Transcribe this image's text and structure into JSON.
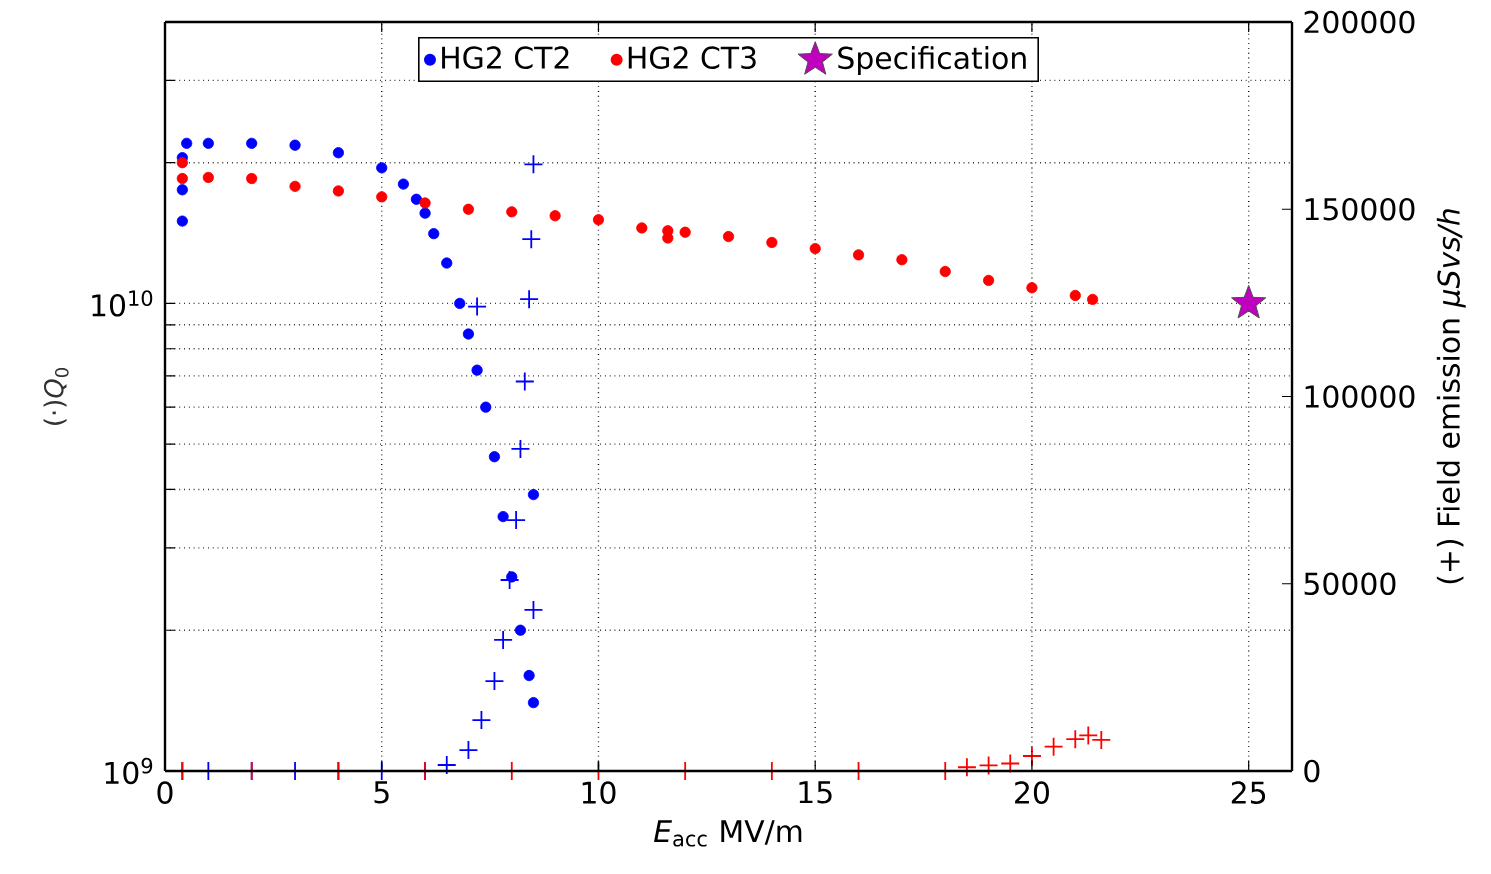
{
  "chart_data": {
    "type": "scatter",
    "xlabel": "*E*$_{acc}$ MV/m",
    "ylabel": "(·)*Q*$_{0}$",
    "y2label": "(+) Field emission *µSvs/h*",
    "xlim": [
      0,
      26
    ],
    "xticks": [
      0,
      5,
      10,
      15,
      20,
      25
    ],
    "ylim": [
      1000000000.0,
      40000000000.0
    ],
    "yticks": [
      {
        "value": 1000000000.0,
        "label": "10$^{9}$"
      },
      {
        "value": 2000000000.0,
        "label": null
      },
      {
        "value": 3000000000.0,
        "label": null
      },
      {
        "value": 4000000000.0,
        "label": null
      },
      {
        "value": 5000000000.0,
        "label": null
      },
      {
        "value": 6000000000.0,
        "label": null
      },
      {
        "value": 7000000000.0,
        "label": null
      },
      {
        "value": 8000000000.0,
        "label": null
      },
      {
        "value": 9000000000.0,
        "label": null
      },
      {
        "value": 10000000000.0,
        "label": "10$^{10}$"
      },
      {
        "value": 20000000000.0,
        "label": null
      },
      {
        "value": 30000000000.0,
        "label": null
      }
    ],
    "y2lim": [
      0,
      200000
    ],
    "y2ticks": [
      0,
      50000,
      100000,
      150000,
      200000
    ],
    "log": "y",
    "grid": true,
    "legend": "top",
    "series": [
      {
        "name": "HG2 CT2",
        "color": "#0000ff",
        "marker": "circle",
        "x": [
          0.4,
          0.4,
          0.4,
          0.5,
          1,
          2,
          3,
          4,
          5,
          5.5,
          5.8,
          6.0,
          6.2,
          6.5,
          6.8,
          7.0,
          7.2,
          7.4,
          7.6,
          7.8,
          8.0,
          8.2,
          8.4,
          8.5,
          8.5
        ],
        "values": [
          15000000000.0,
          17500000000.0,
          20500000000.0,
          22000000000.0,
          22000000000.0,
          22000000000.0,
          21800000000.0,
          21000000000.0,
          19500000000.0,
          18000000000.0,
          16700000000.0,
          15600000000.0,
          14100000000.0,
          12200000000.0,
          10000000000.0,
          8600000000.0,
          7200000000.0,
          6000000000.0,
          4700000000.0,
          3500000000.0,
          2600000000.0,
          2000000000.0,
          1600000000.0,
          1400000000.0,
          3900000000.0
        ]
      },
      {
        "color": "#0000ff",
        "marker": "cross",
        "axis": "y2",
        "x": [
          0.4,
          1,
          2,
          3,
          4,
          5,
          6,
          6.5,
          7.0,
          7.2,
          7.3,
          7.6,
          7.8,
          7.95,
          8.1,
          8.2,
          8.3,
          8.4,
          8.45,
          8.5,
          8.5
        ],
        "values": [
          0,
          0,
          0,
          0,
          0,
          0,
          0,
          1600,
          5600,
          124000,
          13600,
          24000,
          35000,
          51000,
          67000,
          86000,
          104000,
          126000,
          142000,
          162000,
          43000
        ]
      },
      {
        "name": "HG2 CT3",
        "color": "#ff0000",
        "marker": "circle",
        "x": [
          0.4,
          0.4,
          1,
          2,
          3,
          4,
          5,
          6,
          7,
          8,
          9,
          10,
          11,
          11.6,
          11.6,
          12,
          13,
          14,
          15,
          16,
          17,
          18,
          19,
          20,
          21,
          21.4
        ],
        "values": [
          20000000000.0,
          18500000000.0,
          18600000000.0,
          18500000000.0,
          17800000000.0,
          17400000000.0,
          16900000000.0,
          16400000000.0,
          15900000000.0,
          15700000000.0,
          15400000000.0,
          15100000000.0,
          14500000000.0,
          14300000000.0,
          13800000000.0,
          14200000000.0,
          13900000000.0,
          13500000000.0,
          13100000000.0,
          12700000000.0,
          12400000000.0,
          11700000000.0,
          11200000000.0,
          10800000000.0,
          10400000000.0,
          10200000000.0
        ]
      },
      {
        "color": "#ff0000",
        "marker": "cross",
        "axis": "y2",
        "x": [
          0.4,
          2,
          4,
          6,
          8,
          10,
          12,
          14,
          16,
          18,
          18.5,
          19,
          19.5,
          20,
          20.5,
          21,
          21.3,
          21.6
        ],
        "values": [
          0,
          0,
          0,
          0,
          0,
          0,
          0,
          0,
          0,
          0,
          1000,
          1500,
          2000,
          4000,
          6500,
          8500,
          9500,
          8300
        ]
      },
      {
        "name": "Specification",
        "color": "#bf00bf",
        "marker": "star",
        "x": [
          25
        ],
        "values": [
          10000000000.0
        ]
      }
    ]
  }
}
